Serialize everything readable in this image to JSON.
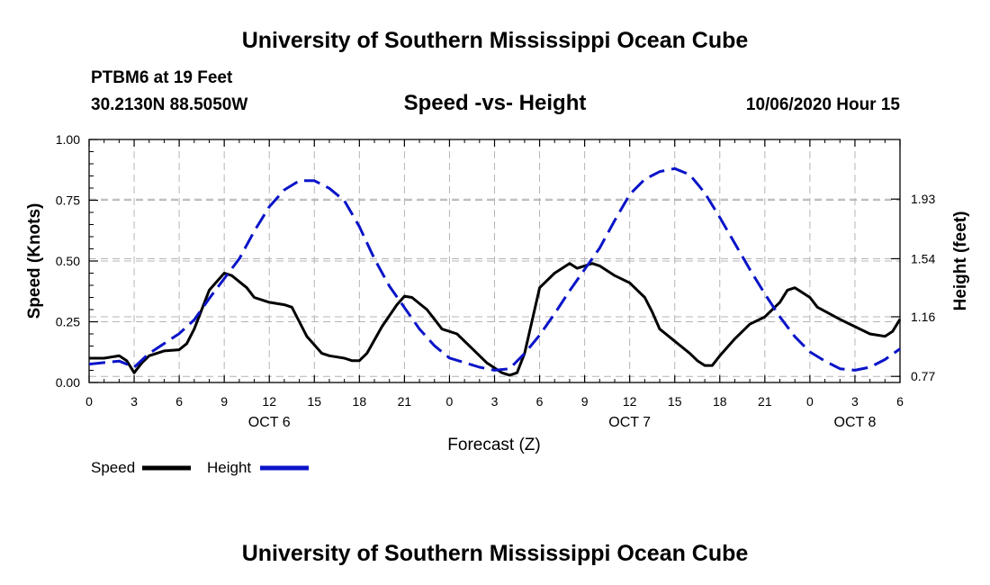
{
  "header": {
    "title": "University of Southern Mississippi Ocean Cube",
    "station": "PTBM6 at 19 Feet",
    "coords": "30.2130N 88.5050W",
    "chart_title": "Speed -vs- Height",
    "datetime": "10/06/2020 Hour 15"
  },
  "footer": {
    "title": "University of Southern Mississippi Ocean Cube"
  },
  "colors": {
    "speed": "#000000",
    "height": "#0a14c8",
    "grid": "#b4b4b4"
  },
  "chart_data": {
    "type": "line",
    "title": "Speed -vs- Height",
    "xlabel": "Forecast (Z)",
    "ylabel": "Speed (Knots)",
    "y2label": "Height (feet)",
    "xlim": [
      0,
      54
    ],
    "ylim": [
      0,
      1.0
    ],
    "y2lim": [
      0.73,
      2.32
    ],
    "x_ticks": [
      0,
      3,
      6,
      9,
      12,
      15,
      18,
      21,
      24,
      27,
      30,
      33,
      36,
      39,
      42,
      45,
      48,
      51,
      54
    ],
    "x_tick_labels": [
      "0",
      "3",
      "6",
      "9",
      "12",
      "15",
      "18",
      "21",
      "0",
      "3",
      "6",
      "9",
      "12",
      "15",
      "18",
      "21",
      "0",
      "3",
      "6"
    ],
    "y_ticks": [
      0,
      0.25,
      0.5,
      0.75,
      1.0
    ],
    "y_tick_labels": [
      "0.00",
      "0.25",
      "0.50",
      "0.75",
      "1.00"
    ],
    "y2_ticks": [
      0.77,
      1.16,
      1.54,
      1.93
    ],
    "y2_tick_labels": [
      "0.77",
      "1.16",
      "1.54",
      "1.93"
    ],
    "date_labels": [
      {
        "x": 12,
        "label": "OCT 6"
      },
      {
        "x": 36,
        "label": "OCT 7"
      },
      {
        "x": 51,
        "label": "OCT 8"
      }
    ],
    "grid": true,
    "legend_position": "bottom-left",
    "series": [
      {
        "name": "Speed",
        "axis": "left",
        "style": "solid",
        "points": [
          [
            0,
            0.1
          ],
          [
            1,
            0.1
          ],
          [
            2,
            0.11
          ],
          [
            2.5,
            0.09
          ],
          [
            3,
            0.04
          ],
          [
            3.5,
            0.08
          ],
          [
            4,
            0.11
          ],
          [
            5,
            0.13
          ],
          [
            6,
            0.135
          ],
          [
            6.5,
            0.16
          ],
          [
            7,
            0.22
          ],
          [
            8,
            0.38
          ],
          [
            9,
            0.45
          ],
          [
            9.5,
            0.44
          ],
          [
            10.5,
            0.39
          ],
          [
            11,
            0.35
          ],
          [
            12,
            0.33
          ],
          [
            13,
            0.32
          ],
          [
            13.5,
            0.31
          ],
          [
            14,
            0.25
          ],
          [
            14.5,
            0.19
          ],
          [
            15.5,
            0.12
          ],
          [
            16,
            0.11
          ],
          [
            17,
            0.1
          ],
          [
            17.5,
            0.09
          ],
          [
            18,
            0.09
          ],
          [
            18.5,
            0.12
          ],
          [
            19.5,
            0.23
          ],
          [
            20.5,
            0.32
          ],
          [
            21,
            0.355
          ],
          [
            21.5,
            0.35
          ],
          [
            22.5,
            0.3
          ],
          [
            23,
            0.26
          ],
          [
            23.5,
            0.22
          ],
          [
            24.5,
            0.2
          ],
          [
            25.5,
            0.14
          ],
          [
            26.5,
            0.08
          ],
          [
            27.5,
            0.04
          ],
          [
            28,
            0.03
          ],
          [
            28.5,
            0.04
          ],
          [
            29,
            0.12
          ],
          [
            30,
            0.39
          ],
          [
            31,
            0.45
          ],
          [
            32,
            0.49
          ],
          [
            32.5,
            0.47
          ],
          [
            33,
            0.48
          ],
          [
            33.5,
            0.49
          ],
          [
            34,
            0.48
          ],
          [
            35,
            0.44
          ],
          [
            36,
            0.41
          ],
          [
            37,
            0.35
          ],
          [
            37.5,
            0.29
          ],
          [
            38,
            0.22
          ],
          [
            39,
            0.17
          ],
          [
            40,
            0.12
          ],
          [
            40.5,
            0.09
          ],
          [
            41,
            0.07
          ],
          [
            41.5,
            0.07
          ],
          [
            42,
            0.11
          ],
          [
            43,
            0.18
          ],
          [
            44,
            0.24
          ],
          [
            45,
            0.27
          ],
          [
            46,
            0.33
          ],
          [
            46.5,
            0.38
          ],
          [
            47,
            0.39
          ],
          [
            48,
            0.35
          ],
          [
            48.5,
            0.31
          ],
          [
            50,
            0.26
          ],
          [
            51,
            0.23
          ],
          [
            52,
            0.2
          ],
          [
            53,
            0.19
          ],
          [
            53.5,
            0.21
          ],
          [
            54,
            0.26
          ]
        ]
      },
      {
        "name": "Height",
        "axis": "right",
        "style": "dashed",
        "points": [
          [
            0,
            0.85
          ],
          [
            2,
            0.87
          ],
          [
            3,
            0.83
          ],
          [
            4,
            0.92
          ],
          [
            6,
            1.05
          ],
          [
            7,
            1.14
          ],
          [
            8,
            1.28
          ],
          [
            9,
            1.41
          ],
          [
            10,
            1.54
          ],
          [
            11,
            1.72
          ],
          [
            12,
            1.88
          ],
          [
            13,
            1.99
          ],
          [
            14,
            2.05
          ],
          [
            15,
            2.05
          ],
          [
            16,
            2.0
          ],
          [
            17,
            1.92
          ],
          [
            18,
            1.75
          ],
          [
            19,
            1.54
          ],
          [
            20,
            1.36
          ],
          [
            21,
            1.22
          ],
          [
            22,
            1.08
          ],
          [
            23,
            0.97
          ],
          [
            24,
            0.89
          ],
          [
            25,
            0.86
          ],
          [
            26,
            0.83
          ],
          [
            27,
            0.81
          ],
          [
            28,
            0.82
          ],
          [
            29,
            0.92
          ],
          [
            30,
            1.04
          ],
          [
            31,
            1.18
          ],
          [
            32,
            1.33
          ],
          [
            33,
            1.47
          ],
          [
            34,
            1.61
          ],
          [
            35,
            1.79
          ],
          [
            36,
            1.96
          ],
          [
            37,
            2.06
          ],
          [
            38,
            2.11
          ],
          [
            39,
            2.13
          ],
          [
            40,
            2.09
          ],
          [
            41,
            1.97
          ],
          [
            42,
            1.81
          ],
          [
            43,
            1.64
          ],
          [
            44,
            1.47
          ],
          [
            45,
            1.31
          ],
          [
            46,
            1.16
          ],
          [
            47,
            1.03
          ],
          [
            48,
            0.93
          ],
          [
            49,
            0.87
          ],
          [
            50,
            0.82
          ],
          [
            51,
            0.81
          ],
          [
            52,
            0.83
          ],
          [
            53,
            0.88
          ],
          [
            54,
            0.95
          ]
        ]
      }
    ]
  }
}
